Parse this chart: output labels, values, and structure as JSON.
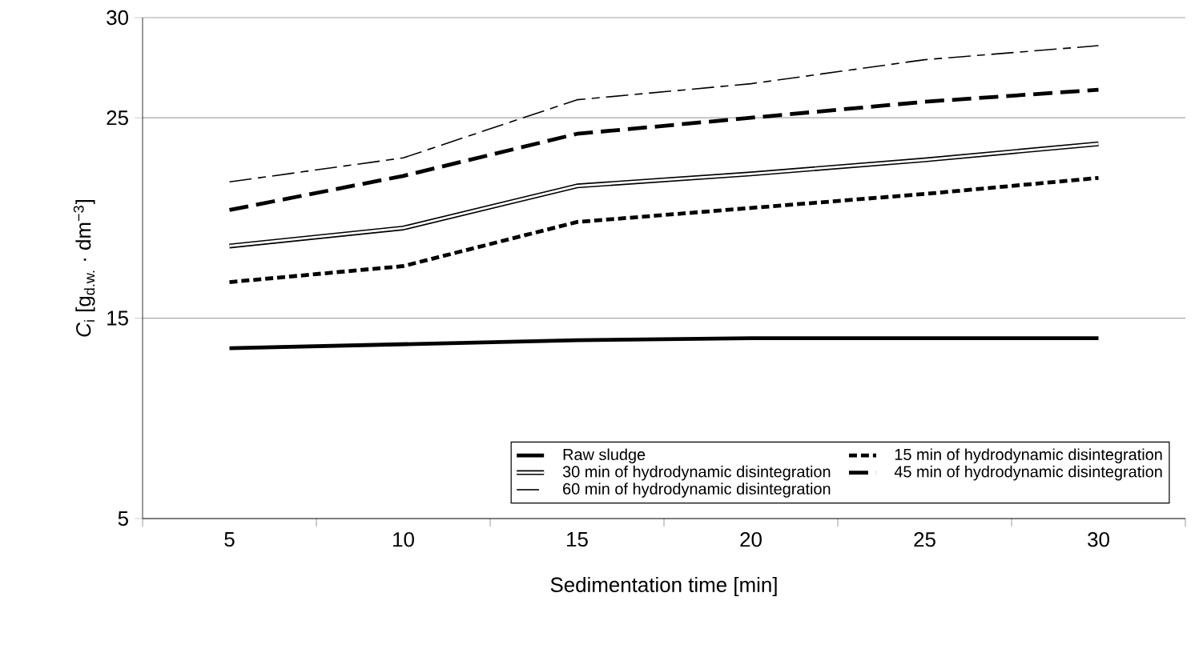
{
  "chart_data": {
    "type": "line",
    "xlabel": "Sedimentation time [min]",
    "ylabel": "*C*$_{i}$ [g$_{d.w.}$ · dm$^{−3}$]",
    "categories": [
      "5",
      "10",
      "15",
      "20",
      "25",
      "30"
    ],
    "ylim": [
      5,
      30
    ],
    "yticks": [
      5,
      15,
      25,
      30
    ],
    "grid": "y",
    "legend": "bottom right",
    "marker": "none",
    "series": [
      {
        "name": "Raw sludge",
        "color": "#000000",
        "values": [
          13.5,
          13.7,
          13.9,
          14.0,
          14.0,
          14.0
        ]
      },
      {
        "name": "15 min of hydrodynamic disintegration",
        "color": "#000000",
        "line_style": "dotted",
        "values": [
          16.8,
          17.6,
          19.8,
          20.5,
          21.2,
          22.0
        ]
      },
      {
        "name": "30 min of hydrodynamic disintegration",
        "color": "#000000",
        "line_style": "solid",
        "values": [
          18.6,
          19.5,
          21.6,
          22.2,
          22.9,
          23.7
        ]
      },
      {
        "name": "45 min of hydrodynamic disintegration",
        "color": "#000000",
        "line_style": "dashed",
        "values": [
          20.4,
          22.1,
          24.2,
          25.0,
          25.8,
          26.4
        ]
      },
      {
        "name": "60 min of hydrodynamic disintegration",
        "color": "#000000",
        "line_style": "dashdot",
        "values": [
          21.8,
          23.0,
          25.9,
          26.7,
          27.9,
          28.6
        ]
      }
    ]
  }
}
